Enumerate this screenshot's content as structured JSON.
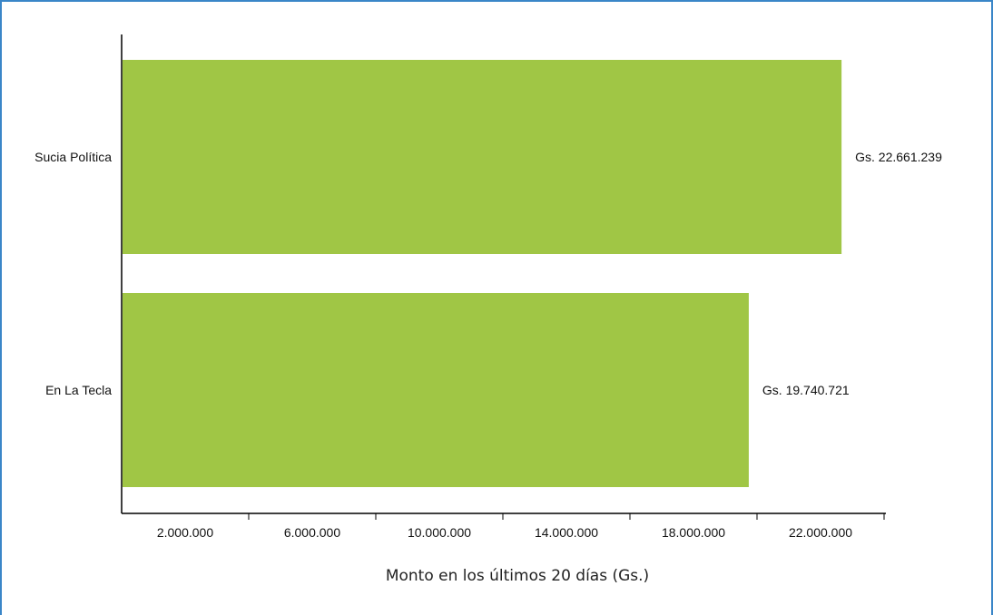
{
  "chart_data": {
    "type": "bar",
    "orientation": "horizontal",
    "categories": [
      "Sucia Política",
      "En La Tecla"
    ],
    "values": [
      22661239,
      19740721
    ],
    "data_labels": [
      "Gs. 22.661.239",
      "Gs. 19.740.721"
    ],
    "xlabel": "Monto en los últimos 20 días (Gs.)",
    "ylabel": "",
    "title": "",
    "xlim": [
      0,
      24000000
    ],
    "x_ticks": [
      {
        "value": 2000000,
        "label": "2.000.000"
      },
      {
        "value": 6000000,
        "label": "6.000.000"
      },
      {
        "value": 10000000,
        "label": "10.000.000"
      },
      {
        "value": 14000000,
        "label": "14.000.000"
      },
      {
        "value": 18000000,
        "label": "18.000.000"
      },
      {
        "value": 22000000,
        "label": "22.000.000"
      }
    ],
    "minor_tick_step": 4000000,
    "grid": false,
    "legend": "none",
    "colors": {
      "bar": "#a0c645",
      "axis": "#000000",
      "frame": "#3a86c8"
    }
  }
}
